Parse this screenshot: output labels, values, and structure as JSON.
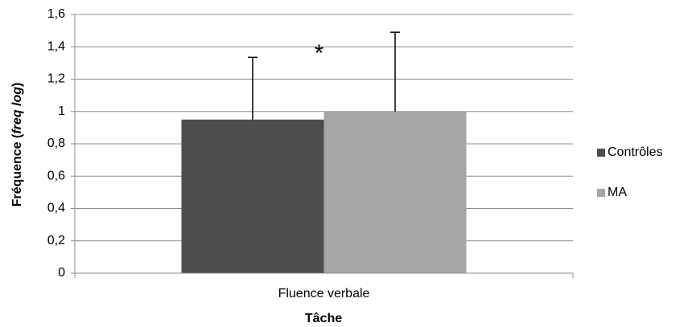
{
  "chart_data": {
    "type": "bar",
    "categories": [
      "Fluence verbale"
    ],
    "series": [
      {
        "name": "Contrôles",
        "color": "#4d4d4d",
        "values": [
          0.95
        ],
        "errors": [
          0.385
        ]
      },
      {
        "name": "MA",
        "color": "#a6a6a6",
        "values": [
          1.0
        ],
        "errors": [
          0.49
        ]
      }
    ],
    "x_label": "Tâche",
    "y_label": [
      "Fréquence (",
      "freq log",
      ")"
    ],
    "annotation": "*",
    "ylim": [
      0,
      1.6
    ],
    "yticks": [
      0,
      {
        "value": 0.2,
        "label": "0,2"
      },
      {
        "value": 0.4,
        "label": "0,4"
      },
      {
        "value": 0.6,
        "label": "0,6"
      },
      {
        "value": 0.8,
        "label": "0,8"
      },
      1,
      {
        "value": 1.2,
        "label": "1,2"
      },
      {
        "value": 1.4,
        "label": "1,4"
      },
      {
        "value": 1.6,
        "label": "1,6"
      }
    ],
    "grid": true,
    "legend": "right"
  }
}
